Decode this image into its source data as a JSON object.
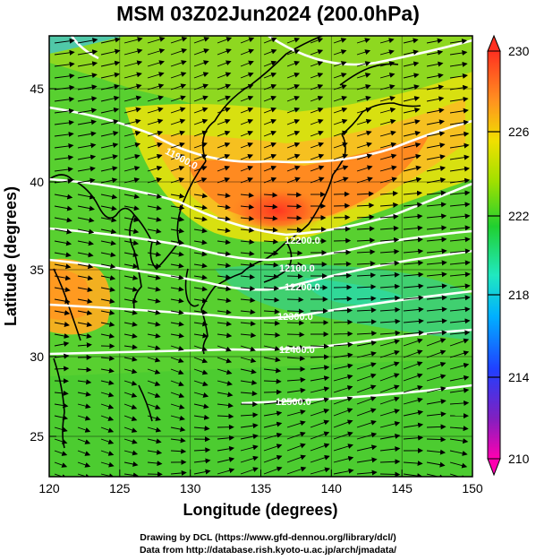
{
  "title": "MSM 03Z02Jun2024 (200.0hPa)",
  "map": {
    "xlabel": "Longitude (degrees)",
    "ylabel": "Latitude  (degrees)",
    "xticks": [
      "120",
      "125",
      "130",
      "135",
      "140",
      "145",
      "150"
    ],
    "yticks": [
      "25",
      "30",
      "35",
      "40",
      "45"
    ],
    "xlim": [
      120,
      150
    ],
    "ylim": [
      22.4,
      47.6
    ],
    "contour_labels": [
      "11900.0",
      "12200.0",
      "12100.0",
      "12200.0",
      "12300.0",
      "12400.0",
      "12500.0"
    ]
  },
  "colorbar": {
    "ticks": [
      "230",
      "226",
      "222",
      "218",
      "214",
      "210"
    ],
    "range": [
      210,
      230
    ],
    "colors": [
      "#ff00b0",
      "#8020c0",
      "#2040ff",
      "#00b0ff",
      "#20e8c0",
      "#20d030",
      "#a0e000",
      "#f0e000",
      "#ff9020",
      "#ff3020"
    ]
  },
  "credit": {
    "line1": "Drawing by DCL (https://www.gfd-dennou.org/library/dcl/)",
    "line2": "Data from http://database.rish.kyoto-u.ac.jp/arch/jmadata/"
  }
}
